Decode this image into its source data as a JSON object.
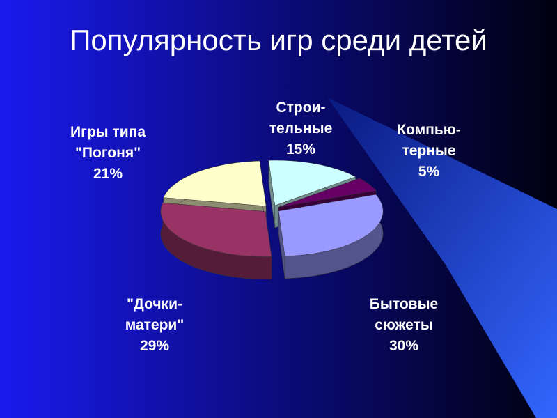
{
  "chart_data": {
    "type": "pie3d",
    "title": "Популярность игр среди детей",
    "categories": [
      "Строи-\nтельные",
      "Компью-\nтерные",
      "Бытовые\nсюжеты",
      "\"Дочки-\nматери\"",
      "Игры типа\n\"Погоня\""
    ],
    "values": [
      15,
      5,
      30,
      29,
      21
    ],
    "value_labels": [
      "15%",
      "5%",
      "30%",
      "29%",
      "21%"
    ],
    "colors": [
      "#ccffff",
      "#660066",
      "#9999ff",
      "#993366",
      "#ffffcc"
    ]
  }
}
